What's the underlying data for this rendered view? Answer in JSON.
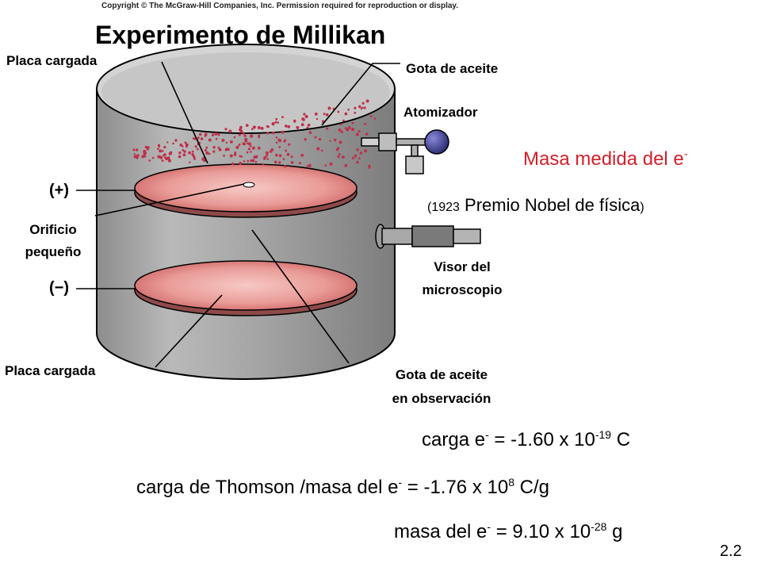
{
  "copyright": "Copyright © The McGraw-Hill Companies, Inc. Permission required for reproduction or display.",
  "title": "Experimento de Millikan",
  "labels": {
    "charged_plate_top": "Placa cargada",
    "oil_drop": "Gota de aceite",
    "atomizer": "Atomizador",
    "plus": "(+)",
    "minus": "(−)",
    "small_hole_1": "Orificio",
    "small_hole_2": "pequeño",
    "microscope_1": "Visor del",
    "microscope_2": "microscopio",
    "charged_plate_bottom": "Placa cargada",
    "observed_drop_1": "Gota de aceite",
    "observed_drop_2": "en observación"
  },
  "mass_measured": {
    "text": "Masa medida del e",
    "sup": "-"
  },
  "nobel": {
    "open": "(",
    "year": "1923",
    "text": " Premio Nobel de física",
    "close": ")"
  },
  "formulas": {
    "charge": {
      "a": "carga e",
      "a_sup": "-",
      "b": " = -1.60 x 10",
      "b_sup": "-19",
      "c": " C"
    },
    "thomson": {
      "a": "carga de Thomson /masa del e",
      "a_sup": "-",
      "b": " = -1.76 x 10",
      "b_sup": "8",
      "c": " C/g"
    },
    "mass": {
      "a": "masa del e",
      "a_sup": "-",
      "b": " = 9.10 x 10",
      "b_sup": "-28",
      "c": " g"
    }
  },
  "slide_number": "2.2",
  "colors": {
    "accent_red": "#d2202a",
    "cylinder_gray": "#9b9b9b",
    "plate_pink": "#e88a8a",
    "droplet_red": "#c0304a",
    "atomizer_bulb": "#3a3a8c"
  },
  "icons": {
    "atomizer": "atomizer-bulb-icon",
    "microscope": "microscope-eyepiece-icon"
  }
}
